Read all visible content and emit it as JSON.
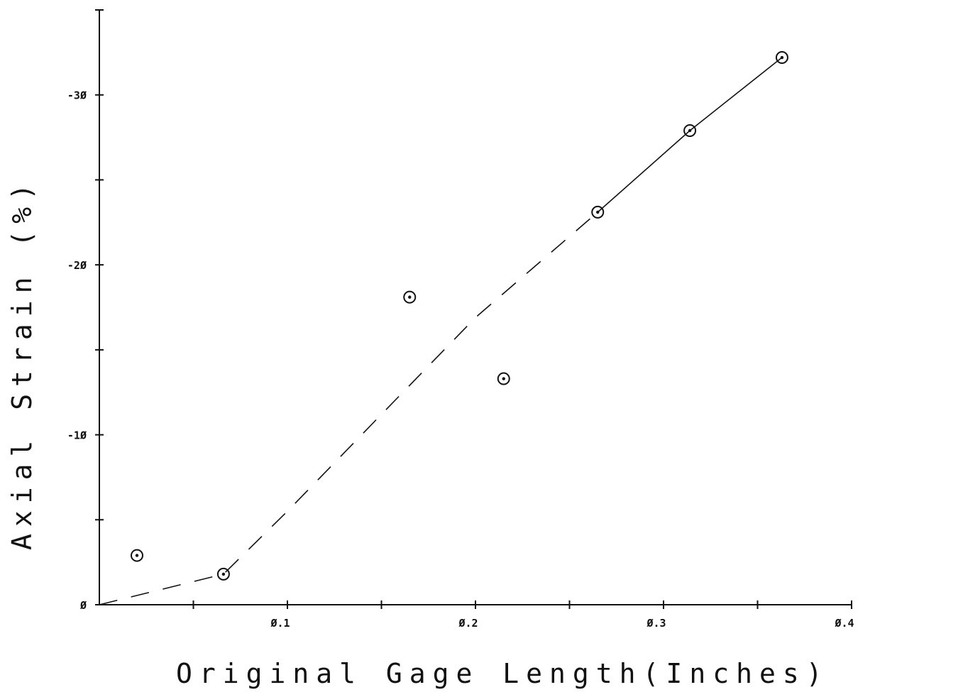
{
  "chart_data": {
    "type": "scatter",
    "title": "",
    "xlabel": "Original Gage Length(Inches)",
    "ylabel": "Axial Strain (%)",
    "xlim": [
      0,
      0.4
    ],
    "ylim": [
      0,
      -35
    ],
    "x_ticks": [
      0.05,
      0.1,
      0.15,
      0.2,
      0.25,
      0.3,
      0.35,
      0.4
    ],
    "x_tick_labels": [
      {
        "value": 0.1,
        "label": "Ø.1"
      },
      {
        "value": 0.2,
        "label": "Ø.2"
      },
      {
        "value": 0.3,
        "label": "Ø.3"
      },
      {
        "value": 0.4,
        "label": "Ø.4"
      }
    ],
    "y_ticks": [
      0,
      -5,
      -10,
      -15,
      -20,
      -25,
      -30,
      -35
    ],
    "y_tick_labels": [
      {
        "value": 0,
        "label": "Ø"
      },
      {
        "value": -10,
        "label": "-1Ø"
      },
      {
        "value": -20,
        "label": "-2Ø"
      },
      {
        "value": -30,
        "label": "-3Ø"
      }
    ],
    "grid": false,
    "series": [
      {
        "marker": "circle-dot",
        "points": [
          {
            "x": 0.02,
            "y": -2.9
          },
          {
            "x": 0.066,
            "y": -1.8
          },
          {
            "x": 0.165,
            "y": -18.1
          },
          {
            "x": 0.215,
            "y": -13.3
          },
          {
            "x": 0.265,
            "y": -23.1
          },
          {
            "x": 0.314,
            "y": -27.9
          },
          {
            "x": 0.363,
            "y": -32.2
          }
        ]
      }
    ],
    "curves": [
      {
        "style": "dashed",
        "points": [
          {
            "x": 0.0,
            "y": 0.0
          },
          {
            "x": 0.066,
            "y": -1.8
          },
          {
            "x": 0.1,
            "y": -5.5
          },
          {
            "x": 0.15,
            "y": -11.2
          },
          {
            "x": 0.2,
            "y": -16.9
          },
          {
            "x": 0.265,
            "y": -23.1
          }
        ]
      },
      {
        "style": "solid",
        "points": [
          {
            "x": 0.265,
            "y": -23.1
          },
          {
            "x": 0.314,
            "y": -27.9
          },
          {
            "x": 0.363,
            "y": -32.2
          }
        ]
      }
    ]
  }
}
